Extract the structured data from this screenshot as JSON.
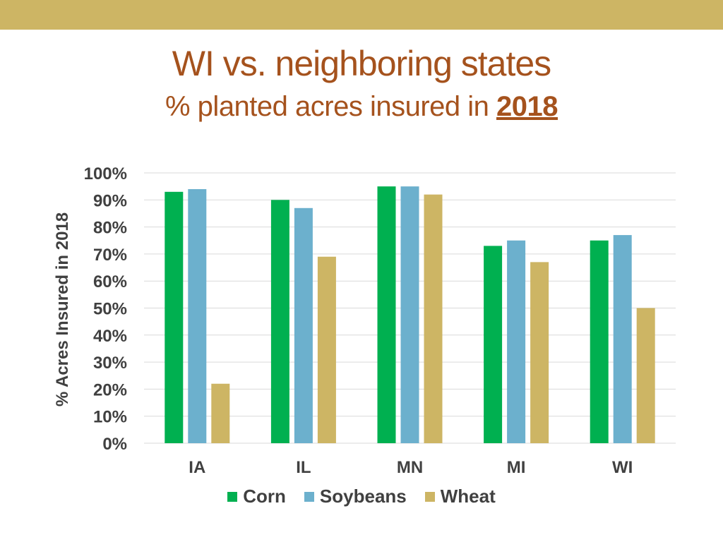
{
  "slide": {
    "title": "WI vs. neighboring states",
    "subtitle_prefix": "% planted acres insured in ",
    "subtitle_year": "2018"
  },
  "colors": {
    "top_band": "#cdb564",
    "title": "#a5521d",
    "text": "#404040",
    "grid": "#d9d9d9"
  },
  "chart_data": {
    "type": "bar",
    "categories": [
      "IA",
      "IL",
      "MN",
      "MI",
      "WI"
    ],
    "series": [
      {
        "name": "Corn",
        "color": "#00b050",
        "values": [
          93,
          90,
          95,
          73,
          75
        ]
      },
      {
        "name": "Soybeans",
        "color": "#6cb0cd",
        "values": [
          94,
          87,
          95,
          75,
          77
        ]
      },
      {
        "name": "Wheat",
        "color": "#cdb564",
        "values": [
          22,
          69,
          92,
          67,
          50
        ]
      }
    ],
    "ylabel": "% Acres Insured in 2018",
    "ylim": [
      0,
      100
    ],
    "yticks": [
      "0%",
      "10%",
      "20%",
      "30%",
      "40%",
      "50%",
      "60%",
      "70%",
      "80%",
      "90%",
      "100%"
    ],
    "grid": true,
    "legend": "bottom"
  }
}
